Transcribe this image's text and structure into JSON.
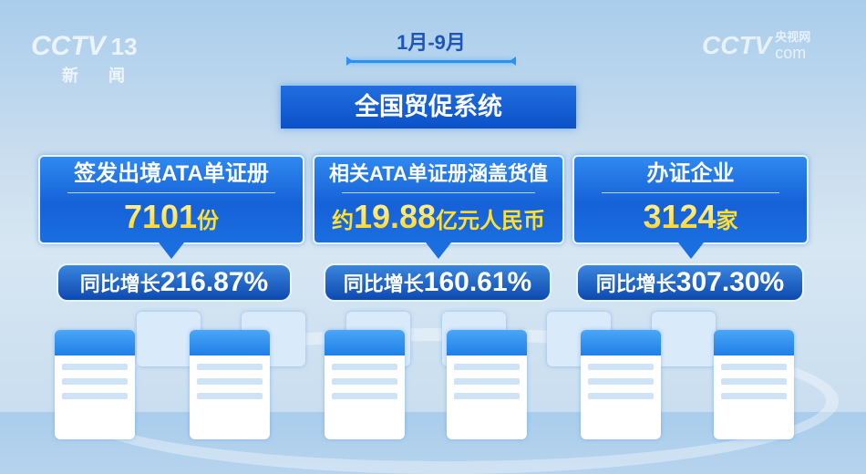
{
  "logo_left": {
    "brand": "CCTV",
    "channel": "13",
    "name": "新 闻"
  },
  "logo_right": {
    "brand": "CCTV",
    "name": "央视网",
    "suffix": "com"
  },
  "period": "1月-9月",
  "title": "全国贸促系统",
  "cards": [
    {
      "label": "签发出境ATA单证册",
      "prefix": "",
      "value": "7101",
      "unit": "份",
      "growth_label": "同比增长",
      "growth": "216.87%"
    },
    {
      "label": "相关ATA单证册涵盖货值",
      "prefix": "约",
      "value": "19.88",
      "unit": "亿元人民币",
      "growth_label": "同比增长",
      "growth": "160.61%"
    },
    {
      "label": "办证企业",
      "prefix": "",
      "value": "3124",
      "unit": "家",
      "growth_label": "同比增长",
      "growth": "307.30%"
    }
  ],
  "colors": {
    "card_blue": "#1661d8",
    "value_yellow": "#ffd21c",
    "title_blue": "#0c50c8"
  }
}
